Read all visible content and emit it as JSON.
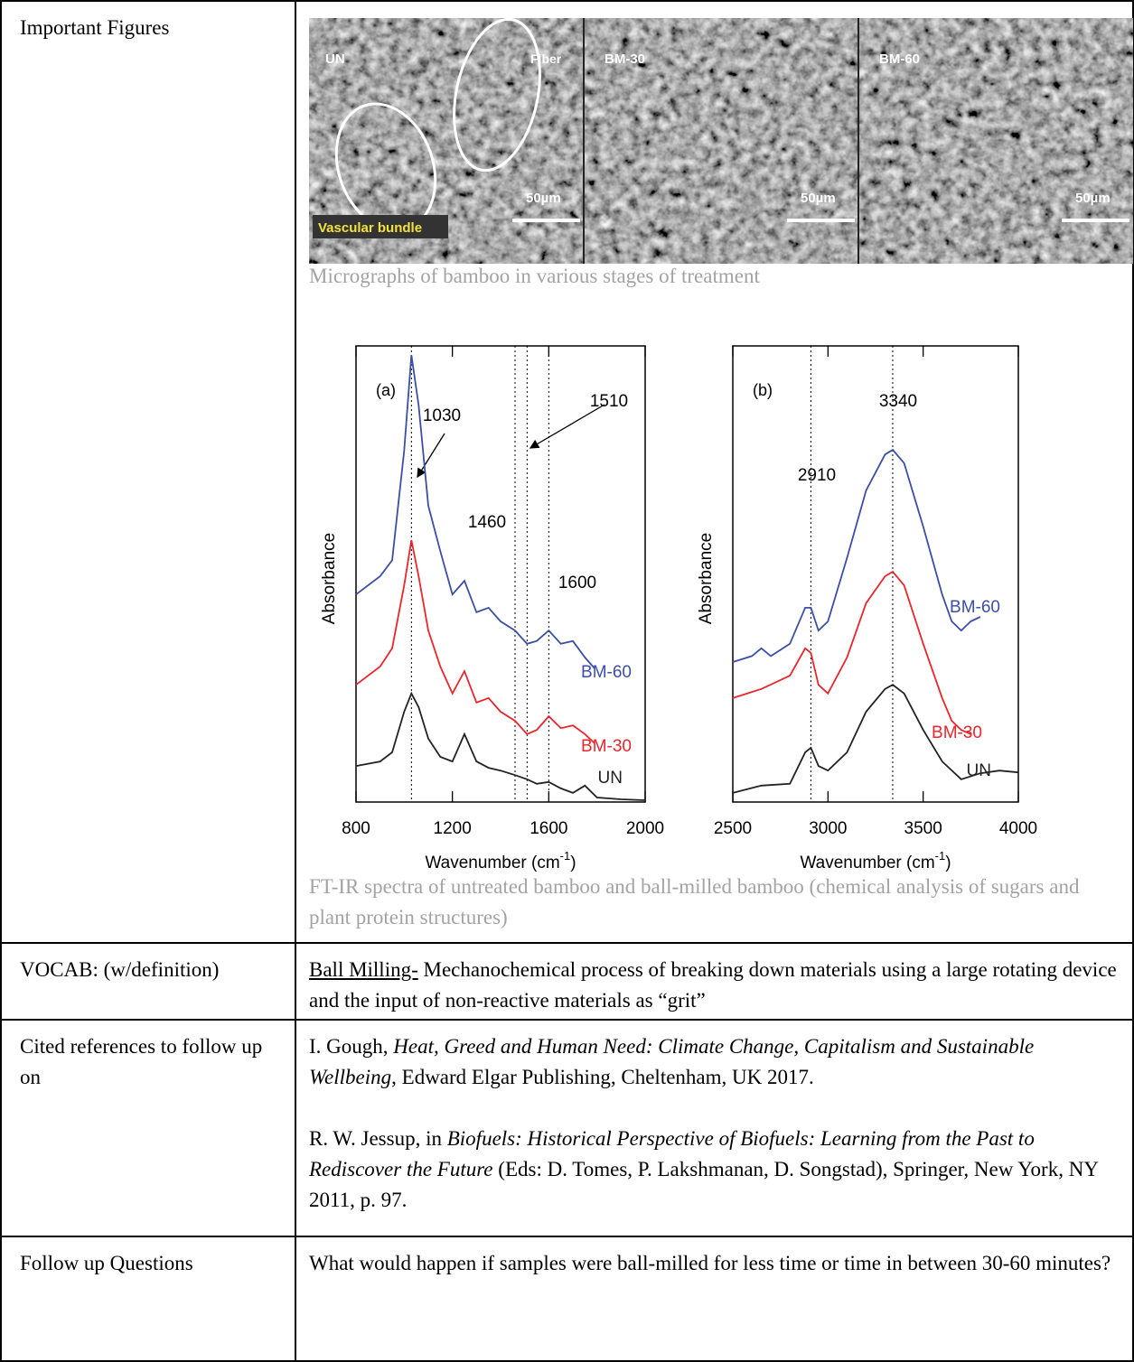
{
  "rows": [
    {
      "heading": "Important Figures",
      "micrograph": {
        "panels": [
          {
            "name": "UN",
            "scale": "50µm",
            "labels": [
              "Fiber",
              "Vascular bundle"
            ]
          },
          {
            "name": "BM-30",
            "scale": "50µm"
          },
          {
            "name": "BM-60",
            "scale": "50µm"
          }
        ]
      },
      "micrograph_caption": "Micrographs of bamboo in various stages of treatment",
      "ftir": {
        "panels": [
          {
            "type": "line",
            "label": "(a)",
            "ylabel": "Absorbance",
            "xlabel": {
              "text": "Wavenumber (cm",
              "sup": "-1",
              "end": ")"
            },
            "xlim": [
              800,
              2000
            ],
            "xticks": [
              800,
              1200,
              1600,
              2000
            ],
            "ylim": [
              0,
              100
            ],
            "peaks": [
              1030,
              1460,
              1510,
              1600
            ],
            "series": [
              {
                "name": "BM-60",
                "color": "#3b4ea6",
                "x": [
                  800,
                  900,
                  950,
                  1000,
                  1030,
                  1060,
                  1100,
                  1150,
                  1200,
                  1250,
                  1300,
                  1350,
                  1400,
                  1460,
                  1510,
                  1550,
                  1600,
                  1650,
                  1700,
                  1750,
                  1790
                ],
                "values": [
                  45.5,
                  49.5,
                  53,
                  77,
                  98,
                  87,
                  65,
                  55,
                  45.5,
                  48.5,
                  41.6,
                  42.6,
                  39.6,
                  37.6,
                  34.7,
                  35.3,
                  37.6,
                  34.7,
                  35.3,
                  31.7,
                  29.3
                ]
              },
              {
                "name": "BM-30",
                "color": "#e8262b",
                "x": [
                  800,
                  900,
                  950,
                  1000,
                  1030,
                  1060,
                  1100,
                  1150,
                  1200,
                  1250,
                  1300,
                  1350,
                  1400,
                  1460,
                  1510,
                  1550,
                  1600,
                  1650,
                  1700,
                  1750,
                  1790
                ],
                "values": [
                  25.7,
                  29.7,
                  33.7,
                  47.5,
                  57.4,
                  49.5,
                  37.6,
                  29.7,
                  23.8,
                  28.7,
                  21.8,
                  22.8,
                  19.8,
                  17.8,
                  14.9,
                  15.8,
                  18.8,
                  16.2,
                  16.8,
                  14.9,
                  12.9
                ]
              },
              {
                "name": "UN",
                "color": "#222222",
                "x": [
                  800,
                  900,
                  950,
                  1000,
                  1030,
                  1060,
                  1100,
                  1150,
                  1200,
                  1250,
                  1300,
                  1350,
                  1400,
                  1460,
                  1510,
                  1550,
                  1600,
                  1650,
                  1700,
                  1750,
                  1800,
                  1900,
                  2000
                ],
                "values": [
                  7.9,
                  8.9,
                  10.9,
                  19.8,
                  23.8,
                  20.8,
                  13.9,
                  9.9,
                  8.9,
                  14.9,
                  8.9,
                  7.5,
                  6.9,
                  5.9,
                  5,
                  4,
                  4.4,
                  3,
                  2,
                  3.6,
                  1,
                  0.6,
                  0.4
                ]
              }
            ]
          },
          {
            "type": "line",
            "label": "(b)",
            "ylabel": "Absorbance",
            "xlabel": {
              "text": "Wavenumber (cm",
              "sup": "-1",
              "end": ")"
            },
            "xlim": [
              2500,
              4000
            ],
            "xticks": [
              2500,
              3000,
              3500,
              4000
            ],
            "ylim": [
              0,
              100
            ],
            "peaks": [
              2910,
              3340
            ],
            "series": [
              {
                "name": "BM-60",
                "color": "#3b4ea6",
                "x": [
                  2500,
                  2600,
                  2650,
                  2700,
                  2800,
                  2880,
                  2910,
                  2950,
                  3000,
                  3100,
                  3200,
                  3300,
                  3340,
                  3400,
                  3500,
                  3600,
                  3650,
                  3700,
                  3750,
                  3800
                ],
                "values": [
                  30.7,
                  32,
                  33.7,
                  32,
                  34.7,
                  42.6,
                  42.6,
                  37.6,
                  39.6,
                  53.5,
                  68.3,
                  76.2,
                  77.2,
                  74.3,
                  60.4,
                  45.5,
                  39.6,
                  37.6,
                  39.6,
                  40.6
                ]
              },
              {
                "name": "BM-30",
                "color": "#e8262b",
                "x": [
                  2500,
                  2650,
                  2800,
                  2880,
                  2910,
                  2950,
                  3000,
                  3100,
                  3200,
                  3300,
                  3340,
                  3400,
                  3500,
                  3600,
                  3650,
                  3700,
                  3750
                ],
                "values": [
                  22.8,
                  24.8,
                  27.7,
                  33.7,
                  32.7,
                  25.7,
                  23.8,
                  31.7,
                  43.6,
                  49.5,
                  50.5,
                  47.5,
                  34.7,
                  22.8,
                  17.8,
                  15.8,
                  14.9
                ]
              },
              {
                "name": "UN",
                "color": "#222222",
                "x": [
                  2500,
                  2650,
                  2800,
                  2880,
                  2910,
                  2950,
                  3000,
                  3100,
                  3200,
                  3300,
                  3340,
                  3400,
                  3500,
                  3600,
                  3700,
                  3800,
                  3900,
                  4000
                ],
                "values": [
                  2,
                  3.6,
                  4,
                  10.9,
                  11.9,
                  7.9,
                  6.9,
                  10.9,
                  19.8,
                  24.8,
                  25.7,
                  23.8,
                  15.8,
                  8.9,
                  5,
                  6.3,
                  6.9,
                  6.5
                ]
              }
            ]
          }
        ]
      },
      "ftir_caption": "FT-IR spectra of untreated bamboo and ball-milled bamboo (chemical analysis of sugars and plant protein structures)"
    },
    {
      "heading": "VOCAB: (w/definition)",
      "term": "Ball Milling-",
      "definition": " Mechanochemical process of breaking down materials using a large rotating device and the input of non-reactive materials as “grit”"
    },
    {
      "heading": "Cited references to follow up on",
      "references": [
        {
          "before": "I. Gough, ",
          "title": "Heat, Greed and Human Need: Climate Change, Capitalism and Sustainable Wellbeing",
          "after": ", Edward Elgar Publishing, Cheltenham, UK 2017."
        },
        {
          "before": "R. W. Jessup, in ",
          "title": "Biofuels: Historical Perspective of Biofuels: Learning from the Past to Rediscover the Future",
          "after": " (Eds: D. Tomes, P. Lakshmanan, D. Songstad), Springer, New York, NY 2011, p. 97."
        }
      ]
    },
    {
      "heading": "Follow up Questions",
      "text": "What would happen if samples were ball-milled for less time or time in between 30-60 minutes?"
    }
  ]
}
